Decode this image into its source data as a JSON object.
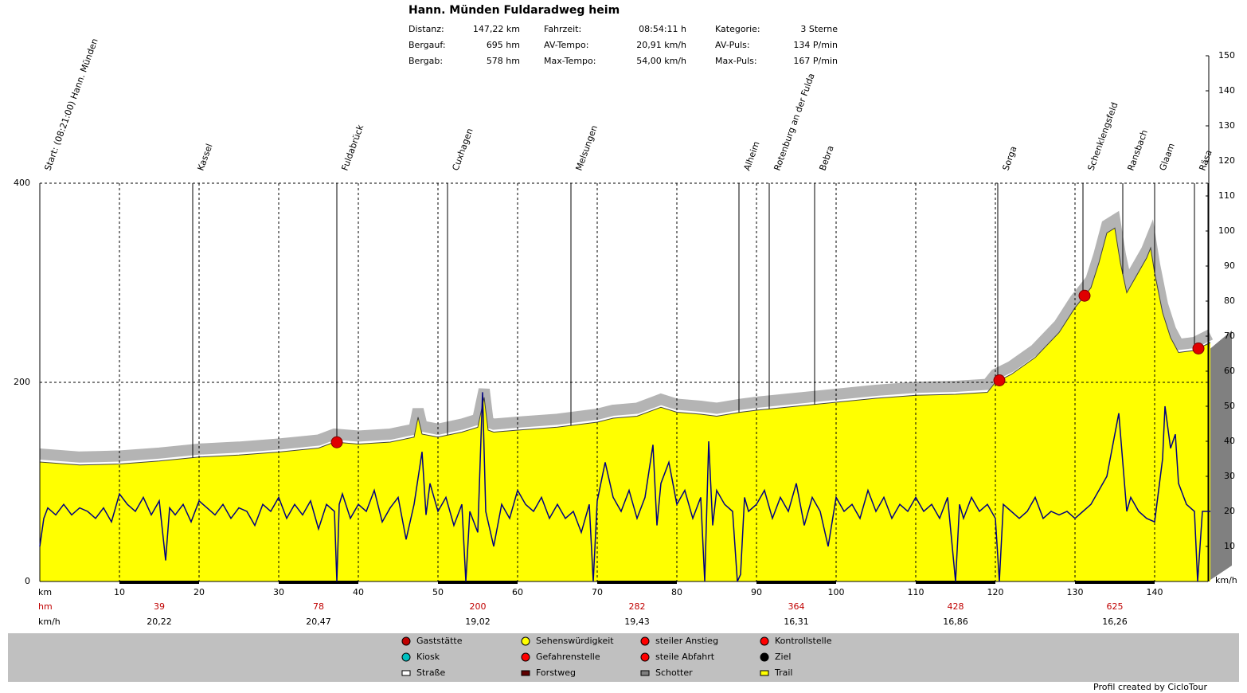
{
  "chart_data": {
    "type": "area",
    "title": "Hann. Münden Fuldaradweg heim",
    "stats": [
      [
        [
          "Distanz:",
          "147,22 km"
        ],
        [
          "Bergauf:",
          "695 hm"
        ],
        [
          "Bergab:",
          "578 hm"
        ]
      ],
      [
        [
          "Fahrzeit:",
          "08:54:11 h"
        ],
        [
          "AV-Tempo:",
          "20,91 km/h"
        ],
        [
          "Max-Tempo:",
          "54,00 km/h"
        ]
      ],
      [
        [
          "Kategorie:",
          "3 Sterne"
        ],
        [
          "AV-Puls:",
          "134 P/min"
        ],
        [
          "Max-Puls:",
          "167 P/min"
        ]
      ]
    ],
    "xlabel": "km",
    "ylabel": "hm",
    "y2label": "km/h",
    "xlim": [
      0,
      147
    ],
    "xticks": [
      10,
      20,
      30,
      40,
      50,
      60,
      70,
      80,
      90,
      100,
      110,
      120,
      130,
      140
    ],
    "ylim": [
      0,
      400
    ],
    "yticks": [
      0,
      200,
      400
    ],
    "y2lim": [
      0,
      150
    ],
    "y2ticks": [
      10,
      20,
      30,
      40,
      50,
      60,
      70,
      80,
      90,
      100,
      110,
      120,
      130,
      140,
      150
    ],
    "grid": true,
    "series": [
      {
        "name": "Höhe",
        "color": "#ffff00",
        "x": [
          0,
          5,
          10,
          15,
          20,
          25,
          30,
          35,
          37,
          40,
          44,
          47,
          47.5,
          48,
          50,
          53,
          55,
          55.8,
          56.3,
          57,
          60,
          65,
          70,
          72,
          75,
          78,
          80,
          83,
          85,
          88,
          90,
          95,
          100,
          105,
          110,
          115,
          119,
          120,
          122,
          125,
          128,
          130,
          132,
          133,
          134,
          135,
          135.7,
          136.5,
          139,
          139.5,
          140,
          141,
          142,
          143,
          145,
          147
        ],
        "values": [
          120,
          117,
          118,
          121,
          125,
          127,
          130,
          134,
          140,
          138,
          140,
          145,
          165,
          148,
          145,
          150,
          155,
          185,
          152,
          150,
          152,
          155,
          160,
          164,
          166,
          175,
          170,
          168,
          166,
          170,
          172,
          176,
          180,
          184,
          187,
          188,
          190,
          200,
          208,
          225,
          250,
          275,
          295,
          320,
          350,
          355,
          320,
          290,
          325,
          335,
          310,
          270,
          245,
          230,
          232,
          240
        ]
      },
      {
        "name": "Tempo",
        "color": "#000080",
        "axis": "y2",
        "x": [
          0,
          0.5,
          1,
          2,
          3,
          4,
          5,
          6,
          7,
          8,
          9,
          10,
          11,
          12,
          13,
          14,
          15,
          15.8,
          16.3,
          17,
          18,
          19,
          20,
          21,
          22,
          23,
          24,
          25,
          26,
          27,
          28,
          29,
          30,
          31,
          32,
          33,
          34,
          35,
          36,
          37,
          37.3,
          37.6,
          38,
          39,
          40,
          41,
          42,
          43,
          44,
          45,
          46,
          47,
          48,
          48.5,
          49,
          50,
          51,
          52,
          53,
          53.5,
          54,
          55,
          55.6,
          56,
          57,
          58,
          59,
          60,
          61,
          62,
          63,
          64,
          65,
          66,
          67,
          68,
          69,
          69.5,
          70,
          71,
          72,
          73,
          74,
          75,
          76,
          77,
          77.5,
          78,
          79,
          80,
          81,
          82,
          83,
          83.5,
          84,
          84.5,
          85,
          86,
          87,
          87.6,
          88,
          88.5,
          89,
          90,
          91,
          92,
          93,
          94,
          95,
          96,
          97,
          98,
          99,
          100,
          101,
          102,
          103,
          104,
          105,
          106,
          107,
          108,
          109,
          110,
          111,
          112,
          113,
          114,
          115,
          115.5,
          116,
          117,
          118,
          119,
          120,
          120.5,
          121,
          122,
          123,
          124,
          125,
          126,
          127,
          128,
          129,
          130,
          131,
          132,
          133,
          134,
          135.5,
          136.5,
          137,
          138,
          139,
          140,
          141,
          141.3,
          142,
          142.6,
          143,
          144,
          145,
          145.4,
          146,
          147
        ],
        "values": [
          10,
          18,
          21,
          19,
          22,
          19,
          21,
          20,
          18,
          21,
          17,
          25,
          22,
          20,
          24,
          19,
          23,
          6,
          21,
          19,
          22,
          17,
          23,
          21,
          19,
          22,
          18,
          21,
          20,
          16,
          22,
          20,
          24,
          18,
          22,
          19,
          23,
          15,
          22,
          20,
          0,
          22,
          25,
          18,
          22,
          20,
          26,
          17,
          21,
          24,
          12,
          22,
          37,
          19,
          28,
          20,
          24,
          16,
          22,
          0,
          20,
          14,
          54,
          20,
          10,
          22,
          18,
          26,
          22,
          20,
          24,
          18,
          22,
          18,
          20,
          14,
          22,
          0,
          23,
          34,
          24,
          20,
          26,
          18,
          24,
          39,
          16,
          28,
          34,
          22,
          26,
          18,
          24,
          0,
          40,
          16,
          26,
          22,
          20,
          0,
          2,
          24,
          20,
          22,
          26,
          18,
          24,
          20,
          28,
          16,
          24,
          20,
          10,
          24,
          20,
          22,
          18,
          26,
          20,
          24,
          18,
          22,
          20,
          24,
          20,
          22,
          18,
          24,
          0,
          22,
          18,
          24,
          20,
          22,
          18,
          0,
          22,
          20,
          18,
          20,
          24,
          18,
          20,
          19,
          20,
          18,
          20,
          22,
          26,
          30,
          48,
          20,
          24,
          20,
          18,
          17,
          35,
          50,
          38,
          42,
          28,
          22,
          20,
          0,
          20,
          20
        ]
      }
    ],
    "waypoints": {
      "labels": [
        "Start: (08:21:00) Hann. Münden",
        "Kassel",
        "Fuldabrück",
        "Cuxhagen",
        "Melsungen",
        "Alheim",
        "Rotenburg an der Fulda",
        "Bebra",
        "Sorga",
        "Schenklengsfeld",
        "Ransbach",
        "Glaam",
        "Räsa"
      ],
      "km": [
        0,
        19.2,
        37.3,
        51.2,
        66.7,
        87.8,
        91.6,
        97.3,
        120.3,
        131,
        136,
        140,
        145
      ]
    },
    "stops_km": [
      37.3,
      120.5,
      131.2,
      145.5
    ],
    "segments": {
      "hm": [
        39,
        78,
        200,
        282,
        364,
        428,
        625
      ],
      "speed": [
        20.22,
        20.47,
        19.02,
        19.43,
        16.31,
        16.86,
        16.26
      ],
      "speed_labels": [
        "20,22",
        "20,47",
        "19,02",
        "19,43",
        "16,31",
        "16,86",
        "16,26"
      ]
    },
    "legend": [
      "Gaststätte",
      "Kiosk",
      "Straße",
      "Sehenswürdigkeit",
      "Gefahrenstelle",
      "Forstweg",
      "steiler Anstieg",
      "steile Abfahrt",
      "Schotter",
      "Kontrollstelle",
      "Ziel",
      "Trail"
    ],
    "footer": "Profil created by CicloTour"
  }
}
